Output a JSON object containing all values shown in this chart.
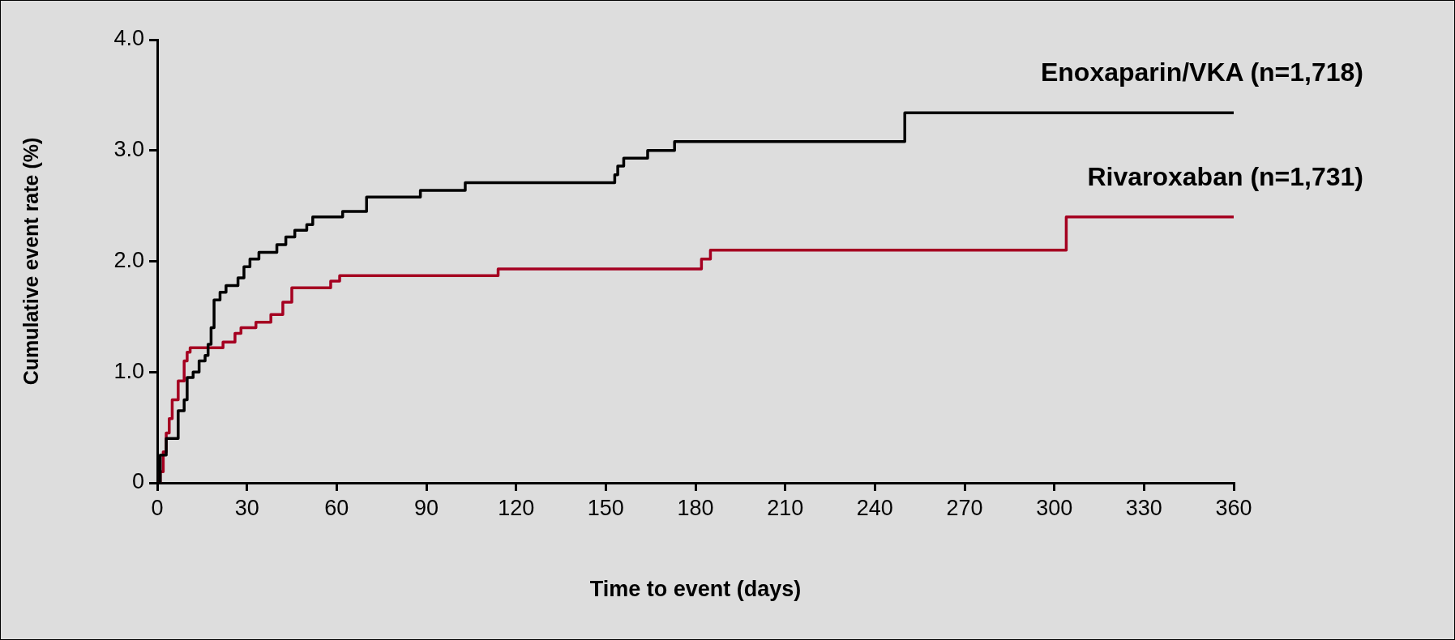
{
  "chart_data": {
    "type": "step",
    "xlabel": "Time to event (days)",
    "ylabel": "Cumulative event rate (%)",
    "xlim": [
      0,
      360
    ],
    "xticks": [
      0,
      30,
      60,
      90,
      120,
      150,
      180,
      210,
      240,
      270,
      300,
      330,
      360
    ],
    "ylim": [
      0,
      4
    ],
    "yticks": [
      0,
      {
        "value": 1,
        "label": "1.0"
      },
      {
        "value": 2,
        "label": "2.0"
      },
      {
        "value": 3,
        "label": "3.0"
      },
      {
        "value": 4,
        "label": "4.0"
      }
    ],
    "series": [
      {
        "name": "Enoxaparin/VKA (n=1,718)",
        "color": "#000000",
        "x": [
          0,
          1,
          3,
          7,
          9,
          10,
          12,
          14,
          16,
          17,
          18,
          19,
          21,
          23,
          27,
          29,
          31,
          34,
          40,
          43,
          46,
          50,
          52,
          62,
          70,
          88,
          103,
          153,
          154,
          156,
          164,
          173,
          250,
          360
        ],
        "values": [
          0,
          0.25,
          0.4,
          0.65,
          0.75,
          0.95,
          1.0,
          1.1,
          1.15,
          1.25,
          1.4,
          1.65,
          1.72,
          1.78,
          1.85,
          1.95,
          2.02,
          2.08,
          2.15,
          2.22,
          2.28,
          2.33,
          2.4,
          2.45,
          2.58,
          2.64,
          2.71,
          2.78,
          2.86,
          2.93,
          3.0,
          3.08,
          3.34,
          3.34
        ]
      },
      {
        "name": "Rivaroxaban (n=1,731)",
        "color": "#a50021",
        "x": [
          0,
          1,
          2,
          3,
          4,
          5,
          7,
          9,
          10,
          11,
          22,
          26,
          28,
          33,
          38,
          42,
          45,
          58,
          61,
          114,
          182,
          185,
          304,
          360
        ],
        "values": [
          0,
          0.1,
          0.28,
          0.45,
          0.58,
          0.75,
          0.92,
          1.1,
          1.18,
          1.22,
          1.27,
          1.35,
          1.4,
          1.45,
          1.52,
          1.63,
          1.76,
          1.82,
          1.87,
          1.93,
          2.02,
          2.1,
          2.4,
          2.4
        ]
      }
    ]
  }
}
